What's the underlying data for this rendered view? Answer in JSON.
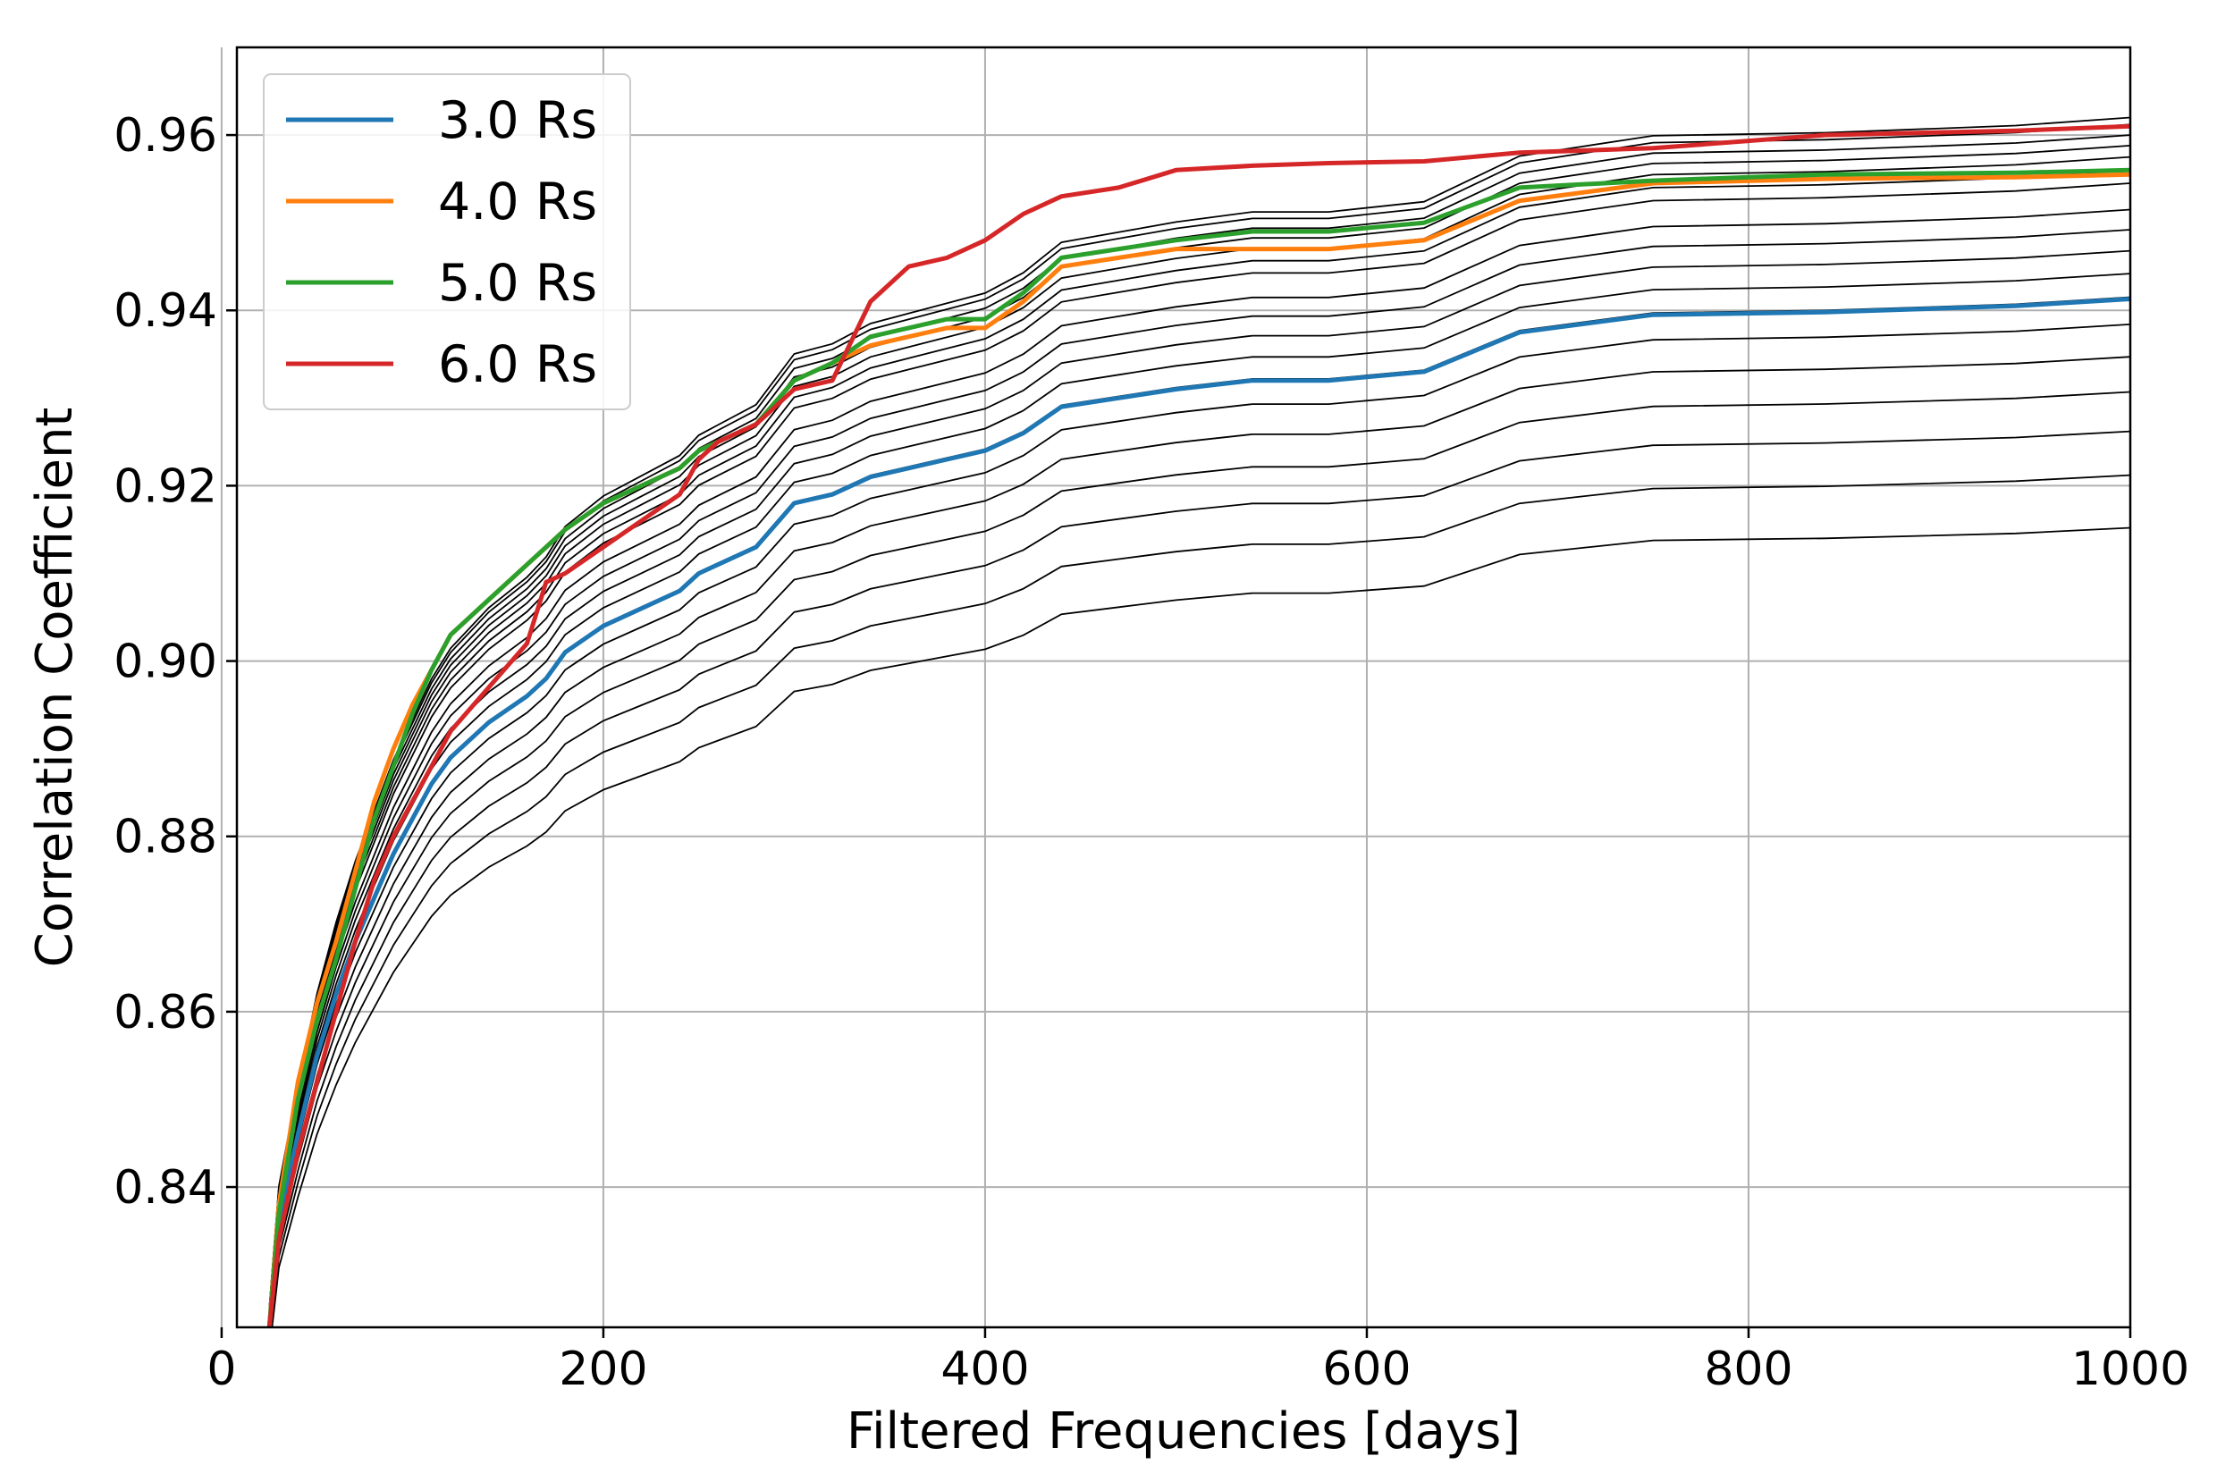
{
  "chart_data": {
    "type": "line",
    "title": "",
    "xlabel": "Filtered Frequencies [days]",
    "ylabel": "Correlation Coefficient",
    "xlim": [
      0,
      1000
    ],
    "ylim": [
      0.824,
      0.97
    ],
    "grid": true,
    "legend_position": "top-left",
    "x_ticks": [
      0,
      200,
      400,
      600,
      800,
      1000
    ],
    "x_tick_labels": [
      "0",
      "200",
      "400",
      "600",
      "800",
      "1000"
    ],
    "y_ticks": [
      0.84,
      0.86,
      0.88,
      0.9,
      0.92,
      0.94,
      0.96
    ],
    "y_tick_labels": [
      "0.84",
      "0.86",
      "0.88",
      "0.90",
      "0.92",
      "0.94",
      "0.96"
    ],
    "x": [
      25,
      30,
      40,
      50,
      60,
      70,
      80,
      90,
      100,
      110,
      120,
      140,
      160,
      170,
      180,
      200,
      220,
      240,
      250,
      260,
      280,
      300,
      320,
      340,
      360,
      380,
      400,
      420,
      440,
      470,
      500,
      540,
      580,
      630,
      680,
      750,
      840,
      940,
      1000
    ],
    "series": [
      {
        "name": "3.0 Rs",
        "color": "#1f77b4",
        "highlight": true,
        "values": [
          0.824,
          0.836,
          0.846,
          0.855,
          0.862,
          0.868,
          0.873,
          0.878,
          0.882,
          0.886,
          0.889,
          0.893,
          0.896,
          0.898,
          0.901,
          0.904,
          0.906,
          0.908,
          0.91,
          0.911,
          0.913,
          0.918,
          0.919,
          0.921,
          0.922,
          0.923,
          0.924,
          0.926,
          0.929,
          0.93,
          0.931,
          0.932,
          0.932,
          0.933,
          0.9375,
          0.9395,
          0.9398,
          0.9405,
          0.9413
        ]
      },
      {
        "name": "4.0 Rs",
        "color": "#ff7f0e",
        "highlight": true,
        "values": [
          0.824,
          0.838,
          0.852,
          0.861,
          0.868,
          0.876,
          0.884,
          0.89,
          0.895,
          0.899,
          0.903,
          0.907,
          0.911,
          0.913,
          0.915,
          0.918,
          0.92,
          0.922,
          0.924,
          0.925,
          0.927,
          0.932,
          0.934,
          0.936,
          0.937,
          0.938,
          0.938,
          0.941,
          0.945,
          0.946,
          0.947,
          0.947,
          0.947,
          0.948,
          0.9525,
          0.9545,
          0.955,
          0.9552,
          0.9555
        ]
      },
      {
        "name": "5.0 Rs",
        "color": "#2ca02c",
        "highlight": true,
        "values": [
          0.824,
          0.837,
          0.85,
          0.859,
          0.866,
          0.874,
          0.882,
          0.888,
          0.894,
          0.899,
          0.903,
          0.907,
          0.911,
          0.913,
          0.915,
          0.918,
          0.92,
          0.922,
          0.924,
          0.925,
          0.927,
          0.932,
          0.934,
          0.937,
          0.938,
          0.939,
          0.939,
          0.942,
          0.946,
          0.947,
          0.948,
          0.949,
          0.949,
          0.95,
          0.954,
          0.9548,
          0.9555,
          0.9557,
          0.956
        ]
      },
      {
        "name": "6.0 Rs",
        "color": "#d62728",
        "highlight": true,
        "values": [
          0.824,
          0.834,
          0.844,
          0.852,
          0.86,
          0.868,
          0.875,
          0.88,
          0.884,
          0.888,
          0.892,
          0.897,
          0.902,
          0.909,
          0.91,
          0.913,
          0.916,
          0.919,
          0.923,
          0.925,
          0.927,
          0.931,
          0.932,
          0.941,
          0.945,
          0.946,
          0.948,
          0.951,
          0.953,
          0.954,
          0.956,
          0.9565,
          0.9568,
          0.957,
          0.958,
          0.9585,
          0.96,
          0.9605,
          0.961
        ]
      }
    ],
    "background_series": {
      "color": "#000000",
      "description": "many unlabeled thin black curves",
      "final_values": [
        0.9152,
        0.9212,
        0.9262,
        0.9307,
        0.9347,
        0.9384,
        0.9415,
        0.9442,
        0.9468,
        0.9492,
        0.9515,
        0.9545,
        0.956,
        0.9575,
        0.9588,
        0.96,
        0.9612,
        0.962
      ]
    }
  }
}
